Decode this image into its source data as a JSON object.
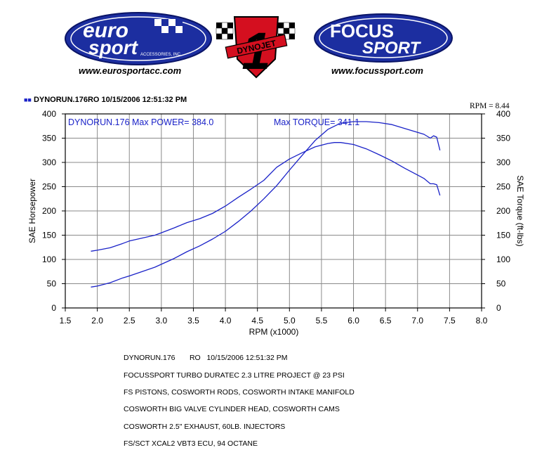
{
  "header": {
    "left_brand_line1": "euro",
    "left_brand_line2": "sport",
    "left_brand_sub": "ACCESSORIES, INC",
    "left_url": "www.eurosportacc.com",
    "center_brand": "DYNOJET",
    "center_numeral": "1",
    "right_brand_line1": "FOCUS",
    "right_brand_line2": "SPORT",
    "right_url": "www.focussport.com"
  },
  "run_header": "DYNORUN.176RO   10/15/2006 12:51:32 PM",
  "rpm_factor": "RPM = 8.44",
  "chart_data": {
    "type": "line",
    "xlabel": "RPM (x1000)",
    "ylabel_left": "SAE Horsepower",
    "ylabel_right": "SAE Torque (ft-lbs)",
    "xlim": [
      1.5,
      8.0
    ],
    "ylim": [
      0,
      400
    ],
    "x_ticks": [
      "1.5",
      "2.0",
      "2.5",
      "3.0",
      "3.5",
      "4.0",
      "4.5",
      "5.0",
      "5.5",
      "6.0",
      "6.5",
      "7.0",
      "7.5",
      "8.0"
    ],
    "y_ticks": [
      "0",
      "50",
      "100",
      "150",
      "200",
      "250",
      "300",
      "350",
      "400"
    ],
    "grid": true,
    "annotation_left": "DYNORUN.176  Max POWER= 384.0",
    "annotation_right": "Max TORQUE= 341.1",
    "line_color": "#1a22c8",
    "series": [
      {
        "values_x": [
          1.9,
          2.0,
          2.2,
          2.4,
          2.5,
          2.7,
          2.9,
          3.0,
          3.2,
          3.4,
          3.6,
          3.8,
          4.0,
          4.2,
          4.4,
          4.6,
          4.8,
          5.0,
          5.2,
          5.4,
          5.6,
          5.8,
          6.0,
          6.2,
          6.4,
          6.6,
          6.8,
          7.0,
          7.1,
          7.2,
          7.25,
          7.3,
          7.35
        ],
        "values_y": [
          43,
          45,
          52,
          62,
          66,
          75,
          84,
          90,
          102,
          116,
          128,
          142,
          158,
          178,
          200,
          225,
          252,
          284,
          315,
          345,
          368,
          381,
          384,
          384,
          382,
          378,
          370,
          362,
          358,
          350,
          355,
          352,
          325
        ]
      },
      {
        "values_x": [
          1.9,
          2.0,
          2.2,
          2.4,
          2.5,
          2.7,
          2.9,
          3.0,
          3.2,
          3.4,
          3.6,
          3.8,
          4.0,
          4.2,
          4.4,
          4.6,
          4.8,
          5.0,
          5.2,
          5.4,
          5.6,
          5.7,
          5.8,
          6.0,
          6.2,
          6.4,
          6.6,
          6.8,
          7.0,
          7.1,
          7.2,
          7.25,
          7.3,
          7.35
        ],
        "values_y": [
          117,
          119,
          124,
          133,
          138,
          144,
          150,
          155,
          165,
          176,
          184,
          195,
          210,
          228,
          245,
          263,
          290,
          307,
          320,
          332,
          339,
          341,
          341,
          337,
          328,
          316,
          303,
          288,
          274,
          267,
          256,
          256,
          254,
          232
        ]
      }
    ]
  },
  "notes": {
    "line1": "DYNORUN.176       RO   10/15/2006 12:51:32 PM",
    "line2": "FOCUSSPORT TURBO DURATEC 2.3 LITRE PROJECT @ 23 PSI",
    "line3": "FS PISTONS, COSWORTH RODS, COSWORTH INTAKE MANIFOLD",
    "line4": "COSWORTH BIG VALVE CYLINDER HEAD, COSWORTH CAMS",
    "line5": "COSWORTH 2.5\" EXHAUST, 60LB. INJECTORS",
    "line6": "FS/SCT XCAL2 VBT3 ECU, 94 OCTANE"
  }
}
